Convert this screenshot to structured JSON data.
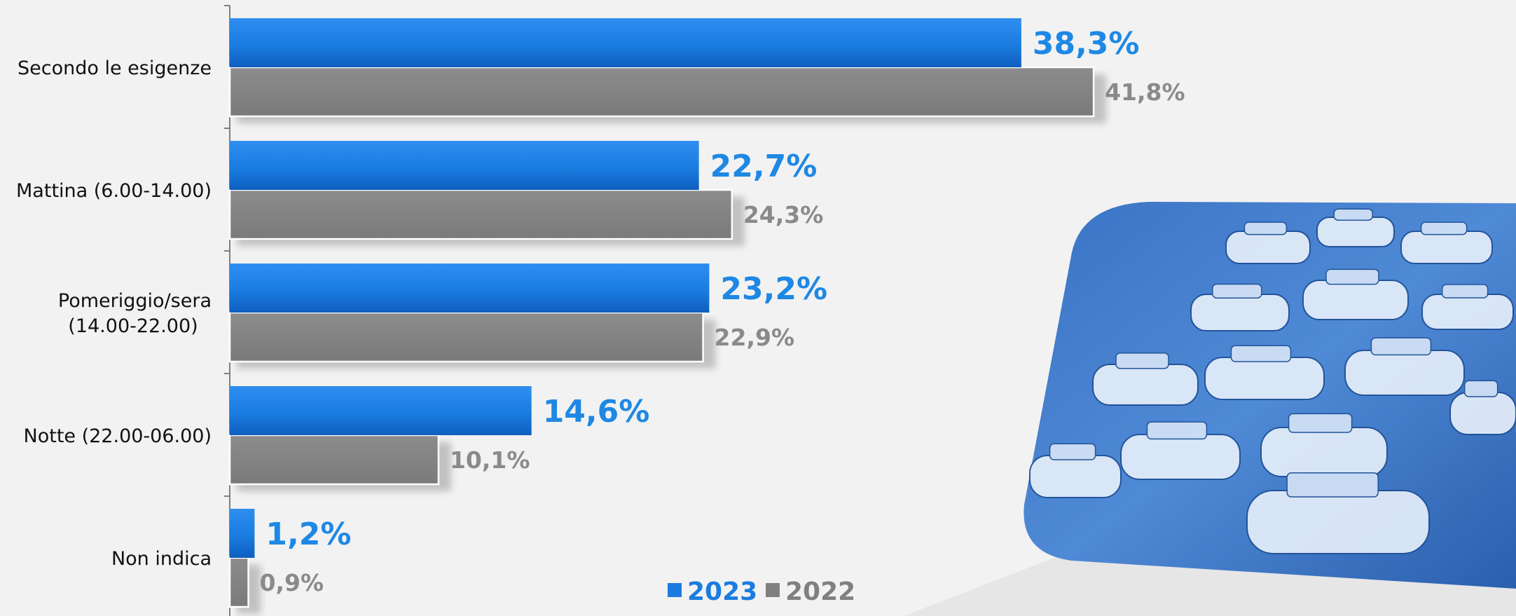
{
  "chart_data": {
    "type": "bar",
    "orientation": "horizontal",
    "categories": [
      "Secondo le esigenze",
      "Mattina (6.00-14.00)",
      "Pomeriggio/sera (14.00-22.00)",
      "Notte (22.00-06.00)",
      "Non indica"
    ],
    "category_lines": [
      [
        "Secondo le esigenze"
      ],
      [
        "Mattina (6.00-14.00)"
      ],
      [
        "Pomeriggio/sera",
        "(14.00-22.00)"
      ],
      [
        "Notte (22.00-06.00)"
      ],
      [
        "Non indica"
      ]
    ],
    "series": [
      {
        "name": "2023",
        "color": "#1a7ce0",
        "values": [
          38.3,
          22.7,
          23.2,
          14.6,
          1.2
        ],
        "labels": [
          "38,3%",
          "22,7%",
          "23,2%",
          "14,6%",
          "1,2%"
        ]
      },
      {
        "name": "2022",
        "color": "#808080",
        "values": [
          41.8,
          24.3,
          22.9,
          10.1,
          0.9
        ],
        "labels": [
          "41,8%",
          "24,3%",
          "22,9%",
          "10,1%",
          "0,9%"
        ]
      }
    ],
    "legend": {
      "position": "bottom",
      "entries": [
        "2023",
        "2022"
      ]
    },
    "grid": false
  },
  "photo": {
    "subject": "taxi fleet in a city square (blue-tinted)"
  },
  "colors": {
    "accent_2023": "#1a7ce0",
    "accent_2022": "#808080",
    "background": "#f2f2f2"
  }
}
